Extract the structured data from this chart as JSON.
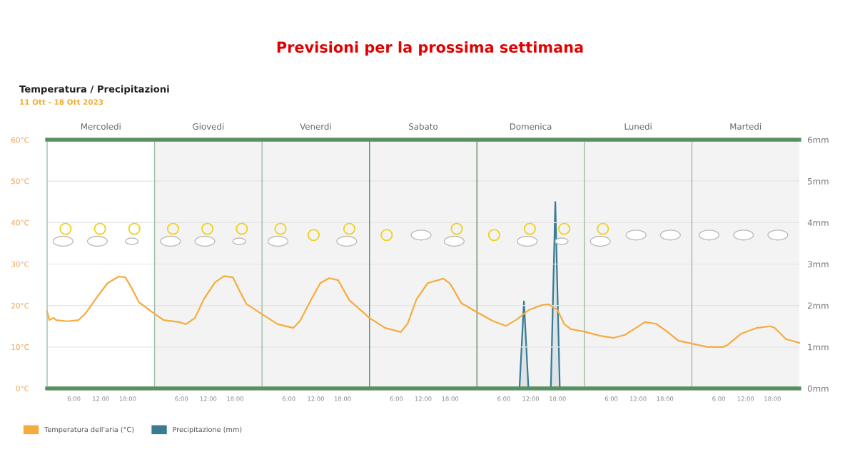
{
  "chart_data": {
    "type": "line",
    "title": "Previsioni per la prossima settimana",
    "subtitle": "Temperatura / Precipitazioni",
    "annotations": [
      "11 Ott - 18 Ott 2023",
      "Mercoledi",
      "Giovedi",
      "Venerdi",
      "Sabato",
      "Domenica",
      "Lunedi",
      "Martedi"
    ],
    "xlim": [
      "2023-10-11T00:00",
      "2023-10-18T00:00"
    ],
    "xticks": [
      {
        "value": "2023-10-11T06:00",
        "label": "6:00"
      },
      {
        "value": "2023-10-11T12:00",
        "label": "12:00"
      },
      {
        "value": "2023-10-11T18:00",
        "label": "18:00"
      },
      {
        "value": "2023-10-12T06:00",
        "label": "6:00"
      },
      {
        "value": "2023-10-12T12:00",
        "label": "12:00"
      },
      {
        "value": "2023-10-12T18:00",
        "label": "18:00"
      },
      {
        "value": "2023-10-13T06:00",
        "label": "6:00"
      },
      {
        "value": "2023-10-13T12:00",
        "label": "12:00"
      },
      {
        "value": "2023-10-13T18:00",
        "label": "18:00"
      },
      {
        "value": "2023-10-14T06:00",
        "label": "6:00"
      },
      {
        "value": "2023-10-14T12:00",
        "label": "12:00"
      },
      {
        "value": "2023-10-14T18:00",
        "label": "18:00"
      },
      {
        "value": "2023-10-15T06:00",
        "label": "6:00"
      },
      {
        "value": "2023-10-15T12:00",
        "label": "12:00"
      },
      {
        "value": "2023-10-15T18:00",
        "label": "18:00"
      },
      {
        "value": "2023-10-16T06:00",
        "label": "6:00"
      },
      {
        "value": "2023-10-16T12:00",
        "label": "12:00"
      },
      {
        "value": "2023-10-16T18:00",
        "label": "18:00"
      },
      {
        "value": "2023-10-17T06:00",
        "label": "6:00"
      },
      {
        "value": "2023-10-17T12:00",
        "label": "12:00"
      },
      {
        "value": "2023-10-17T18:00",
        "label": "18:00"
      }
    ],
    "ylim": [
      0,
      60
    ],
    "yticks": [
      {
        "value": 0,
        "label": "0°C"
      },
      {
        "value": 10,
        "label": "10°C"
      },
      {
        "value": 20,
        "label": "20°C"
      },
      {
        "value": 30,
        "label": "30°C"
      },
      {
        "value": 40,
        "label": "40°C"
      },
      {
        "value": 50,
        "label": "50°C"
      },
      {
        "value": 60,
        "label": "60°C"
      }
    ],
    "y2lim": [
      0,
      6
    ],
    "y2ticks": [
      {
        "value": 0,
        "label": "0mm"
      },
      {
        "value": 1,
        "label": "1mm"
      },
      {
        "value": 2,
        "label": "2mm"
      },
      {
        "value": 3,
        "label": "3mm"
      },
      {
        "value": 4,
        "label": "4mm"
      },
      {
        "value": 5,
        "label": "5mm"
      },
      {
        "value": 6,
        "label": "6mm"
      }
    ],
    "grid": "y",
    "legend": "bottom left",
    "marker": "none",
    "line_style": "solid",
    "ref_lines": [
      {
        "axis": "x",
        "value": "2023-10-12T00:00",
        "label": null,
        "color": "#9dbda5"
      },
      {
        "axis": "x",
        "value": "2023-10-13T00:00",
        "label": null,
        "color": "#9dbda5"
      },
      {
        "axis": "x",
        "value": "2023-10-14T00:00",
        "label": null,
        "color": "#5f8f6a"
      },
      {
        "axis": "x",
        "value": "2023-10-15T00:00",
        "label": null,
        "color": "#5f8f6a"
      },
      {
        "axis": "x",
        "value": "2023-10-16T00:00",
        "label": null,
        "color": "#9dbda5"
      },
      {
        "axis": "x",
        "value": "2023-10-17T00:00",
        "label": null,
        "color": "#9dbda5"
      }
    ],
    "bands": [
      {
        "axis": "x",
        "from": "2023-10-12T00:00",
        "to": "2023-10-18T00:00",
        "label": null,
        "color": "#f3f3f3"
      }
    ],
    "series": [
      {
        "name": "Temperatura dell'aria (°C)",
        "color": "#f5ac3e",
        "x": [
          "2023-10-11T00:00",
          "2023-10-11T00:30",
          "2023-10-11T01:30",
          "2023-10-11T02:00",
          "2023-10-11T04:30",
          "2023-10-11T07:00",
          "2023-10-11T08:30",
          "2023-10-11T11:00",
          "2023-10-11T13:30",
          "2023-10-11T16:00",
          "2023-10-11T17:30",
          "2023-10-11T19:00",
          "2023-10-11T20:30",
          "2023-10-12T00:00",
          "2023-10-12T02:00",
          "2023-10-12T05:30",
          "2023-10-12T07:00",
          "2023-10-12T09:00",
          "2023-10-12T11:00",
          "2023-10-12T13:30",
          "2023-10-12T15:30",
          "2023-10-12T17:30",
          "2023-10-12T19:00",
          "2023-10-12T20:30",
          "2023-10-13T00:00",
          "2023-10-13T03:30",
          "2023-10-13T07:00",
          "2023-10-13T08:30",
          "2023-10-13T11:00",
          "2023-10-13T13:00",
          "2023-10-13T15:00",
          "2023-10-13T17:00",
          "2023-10-13T19:30",
          "2023-10-14T00:00",
          "2023-10-14T03:30",
          "2023-10-14T07:00",
          "2023-10-14T08:30",
          "2023-10-14T10:30",
          "2023-10-14T13:00",
          "2023-10-14T16:30",
          "2023-10-14T18:00",
          "2023-10-14T20:30",
          "2023-10-15T00:00",
          "2023-10-15T03:30",
          "2023-10-15T06:30",
          "2023-10-15T09:00",
          "2023-10-15T11:30",
          "2023-10-15T14:30",
          "2023-10-15T16:00",
          "2023-10-15T18:00",
          "2023-10-15T19:30",
          "2023-10-15T21:00",
          "2023-10-16T00:00",
          "2023-10-16T03:30",
          "2023-10-16T06:30",
          "2023-10-16T09:00",
          "2023-10-16T11:30",
          "2023-10-16T13:30",
          "2023-10-16T16:00",
          "2023-10-16T18:30",
          "2023-10-16T21:00",
          "2023-10-17T00:00",
          "2023-10-17T03:30",
          "2023-10-17T07:00",
          "2023-10-17T08:00",
          "2023-10-17T11:00",
          "2023-10-17T14:30",
          "2023-10-17T17:30",
          "2023-10-17T18:30",
          "2023-10-17T21:00",
          "2023-10-18T00:00"
        ],
        "values": [
          18.6,
          16.5,
          17,
          16.5,
          16.2,
          16.5,
          18,
          21.8,
          25.4,
          27,
          26.8,
          24,
          20.8,
          18,
          16.5,
          16,
          15.5,
          17,
          21.5,
          25.6,
          27.1,
          26.8,
          23.5,
          20.4,
          17.9,
          15.5,
          14.6,
          16.3,
          21.5,
          25.4,
          26.6,
          26.1,
          21.3,
          17,
          14.6,
          13.6,
          15.6,
          21.5,
          25.4,
          26.5,
          25.3,
          20.6,
          18.4,
          16.3,
          15.1,
          16.7,
          18.9,
          20.1,
          20.3,
          18.9,
          15.5,
          14.3,
          13.7,
          12.7,
          12.2,
          12.9,
          14.6,
          16,
          15.6,
          13.7,
          11.5,
          10.8,
          10,
          10,
          10.5,
          13.2,
          14.6,
          15,
          14.6,
          11.9,
          11
        ]
      },
      {
        "name": "Precipitazione (mm)",
        "color": "#3a7a93",
        "axis": "y2",
        "x": [
          "2023-10-15T09:30",
          "2023-10-15T10:30",
          "2023-10-15T11:30",
          "2023-10-15T16:30",
          "2023-10-15T17:30",
          "2023-10-15T18:30"
        ],
        "values": [
          0,
          2.1,
          0,
          0,
          4.5,
          0
        ]
      }
    ]
  }
}
